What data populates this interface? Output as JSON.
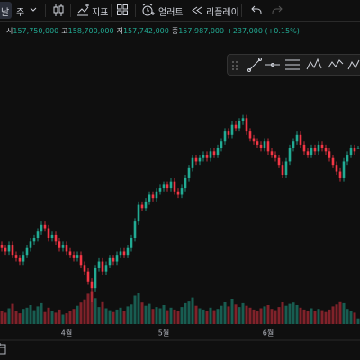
{
  "toolbar": {
    "interval_partial": "날",
    "interval": "주",
    "indicators": "지표",
    "alert": "얼러트",
    "replay": "리플레이"
  },
  "legend": {
    "open_label": "시",
    "open": "157,750,000",
    "high_label": "고",
    "high": "158,700,000",
    "low_label": "저",
    "low": "157,742,000",
    "close_label": "종",
    "close": "157,987,000",
    "change": "+237,000 (+0.15%)"
  },
  "chart_data": {
    "type": "candlestick",
    "categories": [
      null,
      null,
      null,
      null,
      null,
      null,
      null,
      null,
      null,
      null,
      null,
      null,
      null,
      null,
      null,
      null,
      null,
      null,
      "4월",
      null,
      null,
      null,
      null,
      null,
      null,
      null,
      null,
      null,
      null,
      null,
      null,
      null,
      null,
      null,
      null,
      null,
      null,
      null,
      null,
      null,
      null,
      null,
      null,
      null,
      null,
      "5월",
      null,
      null,
      null,
      null,
      null,
      null,
      null,
      null,
      null,
      null,
      null,
      null,
      null,
      null,
      null,
      null,
      null,
      null,
      null,
      null,
      null,
      null,
      null,
      null,
      null,
      null,
      null,
      null,
      "6월",
      null,
      null,
      null,
      null,
      null,
      null,
      null,
      null,
      null,
      null,
      null,
      null,
      null,
      null,
      null,
      null,
      null,
      null,
      null,
      null,
      null,
      null,
      null,
      null,
      null
    ],
    "open": [
      129000000,
      128000000,
      127000000,
      129000000,
      126000000,
      125000000,
      124000000,
      126000000,
      128000000,
      130000000,
      131000000,
      133000000,
      135000000,
      134000000,
      131000000,
      132000000,
      130000000,
      128000000,
      129000000,
      127000000,
      126000000,
      125000000,
      126000000,
      123000000,
      121000000,
      118000000,
      116000000,
      122000000,
      124000000,
      121000000,
      123000000,
      125000000,
      124000000,
      126000000,
      127000000,
      126000000,
      128000000,
      131000000,
      136000000,
      141000000,
      140000000,
      142000000,
      144000000,
      143000000,
      145000000,
      146000000,
      147000000,
      146000000,
      148000000,
      145000000,
      144000000,
      146000000,
      149000000,
      152000000,
      155000000,
      154000000,
      155000000,
      156000000,
      155000000,
      157000000,
      156000000,
      158000000,
      160000000,
      163000000,
      162000000,
      165000000,
      164000000,
      166000000,
      167000000,
      163000000,
      161000000,
      160000000,
      159000000,
      158000000,
      160000000,
      157000000,
      156000000,
      155000000,
      153000000,
      150000000,
      154000000,
      158000000,
      160000000,
      162000000,
      159000000,
      157000000,
      156000000,
      158000000,
      157000000,
      159000000,
      158000000,
      157000000,
      155000000,
      153000000,
      151000000,
      149000000,
      154000000,
      156000000,
      158000000,
      157750000
    ],
    "high": [
      130000000,
      129000000,
      130000000,
      130000000,
      127000000,
      126000000,
      127000000,
      129000000,
      131000000,
      132000000,
      134000000,
      136000000,
      136000000,
      135000000,
      133000000,
      133000000,
      131000000,
      130000000,
      130000000,
      128000000,
      127000000,
      127000000,
      127000000,
      124000000,
      122000000,
      119000000,
      123000000,
      125000000,
      125000000,
      124000000,
      126000000,
      126000000,
      127000000,
      128000000,
      128000000,
      129000000,
      132000000,
      137000000,
      142000000,
      142000000,
      143000000,
      145000000,
      145000000,
      146000000,
      147000000,
      148000000,
      148000000,
      149000000,
      149000000,
      146000000,
      147000000,
      150000000,
      153000000,
      156000000,
      156000000,
      156000000,
      157000000,
      157000000,
      158000000,
      158000000,
      159000000,
      161000000,
      164000000,
      164000000,
      166000000,
      166000000,
      167000000,
      168000000,
      168000000,
      164000000,
      162000000,
      161000000,
      160000000,
      161000000,
      161000000,
      158000000,
      157000000,
      156000000,
      154000000,
      155000000,
      159000000,
      161000000,
      163000000,
      163000000,
      160000000,
      158000000,
      159000000,
      159000000,
      160000000,
      160000000,
      159000000,
      158000000,
      156000000,
      154000000,
      152000000,
      155000000,
      157000000,
      159000000,
      159000000,
      158700000
    ],
    "low": [
      127000000,
      126000000,
      126000000,
      125000000,
      124000000,
      123000000,
      123000000,
      125000000,
      127000000,
      129000000,
      130000000,
      132000000,
      133000000,
      130000000,
      130000000,
      129000000,
      127000000,
      127000000,
      126000000,
      125000000,
      124000000,
      124000000,
      122000000,
      120000000,
      117000000,
      112000000,
      115000000,
      121000000,
      120000000,
      120000000,
      122000000,
      123000000,
      123000000,
      125000000,
      125000000,
      125000000,
      127000000,
      130000000,
      135000000,
      139000000,
      139000000,
      141000000,
      142000000,
      142000000,
      144000000,
      145000000,
      145000000,
      145000000,
      144000000,
      143000000,
      143000000,
      145000000,
      148000000,
      151000000,
      153000000,
      153000000,
      154000000,
      154000000,
      154000000,
      155000000,
      155000000,
      157000000,
      159000000,
      161000000,
      161000000,
      163000000,
      163000000,
      165000000,
      162000000,
      160000000,
      159000000,
      158000000,
      157000000,
      157000000,
      156000000,
      155000000,
      154000000,
      152000000,
      149000000,
      149000000,
      153000000,
      157000000,
      159000000,
      158000000,
      156000000,
      155000000,
      155000000,
      156000000,
      156000000,
      157000000,
      156000000,
      154000000,
      152000000,
      150000000,
      148000000,
      148000000,
      153000000,
      155000000,
      156000000,
      157742000
    ],
    "close": [
      128000000,
      127000000,
      129000000,
      126000000,
      125000000,
      124000000,
      126000000,
      128000000,
      130000000,
      131000000,
      133000000,
      135000000,
      134000000,
      131000000,
      132000000,
      130000000,
      128000000,
      129000000,
      127000000,
      126000000,
      125000000,
      126000000,
      123000000,
      121000000,
      118000000,
      116000000,
      122000000,
      124000000,
      121000000,
      123000000,
      125000000,
      124000000,
      126000000,
      127000000,
      126000000,
      128000000,
      131000000,
      136000000,
      141000000,
      140000000,
      142000000,
      144000000,
      143000000,
      145000000,
      146000000,
      147000000,
      146000000,
      148000000,
      145000000,
      144000000,
      146000000,
      149000000,
      152000000,
      155000000,
      154000000,
      155000000,
      156000000,
      155000000,
      157000000,
      156000000,
      158000000,
      160000000,
      163000000,
      162000000,
      165000000,
      164000000,
      166000000,
      167000000,
      163000000,
      161000000,
      160000000,
      159000000,
      158000000,
      160000000,
      157000000,
      156000000,
      155000000,
      153000000,
      150000000,
      154000000,
      158000000,
      160000000,
      162000000,
      159000000,
      157000000,
      156000000,
      158000000,
      157000000,
      159000000,
      158000000,
      157000000,
      155000000,
      153000000,
      151000000,
      149000000,
      154000000,
      156000000,
      158000000,
      157000000,
      157987000
    ],
    "volume": [
      2100,
      1800,
      2500,
      3200,
      2000,
      1700,
      2400,
      2600,
      3000,
      2200,
      2800,
      3300,
      1900,
      2600,
      2100,
      1800,
      2300,
      1500,
      1700,
      2000,
      2400,
      2900,
      3400,
      3900,
      4800,
      5200,
      4100,
      2700,
      3600,
      2500,
      2200,
      1900,
      2300,
      2600,
      2000,
      2800,
      3100,
      4500,
      5000,
      3400,
      2900,
      3200,
      2400,
      2700,
      2500,
      3000,
      2200,
      2600,
      2300,
      2100,
      2700,
      3300,
      3700,
      4200,
      2900,
      2500,
      2300,
      2000,
      2600,
      2200,
      2400,
      2900,
      3500,
      2800,
      4000,
      3100,
      2700,
      3300,
      2900,
      2600,
      2300,
      2100,
      2500,
      2800,
      3000,
      2400,
      2200,
      2700,
      3500,
      2900,
      3200,
      3400,
      3000,
      2600,
      2300,
      2100,
      2500,
      2000,
      2400,
      2200,
      1900,
      2300,
      2800,
      3100,
      3600,
      3300,
      2400,
      2100,
      1800,
      900
    ],
    "ylim": [
      112000000,
      187600000
    ],
    "y2lim": [
      0,
      6000
    ],
    "up_color": "#22ab94",
    "down_color": "#f23645"
  }
}
